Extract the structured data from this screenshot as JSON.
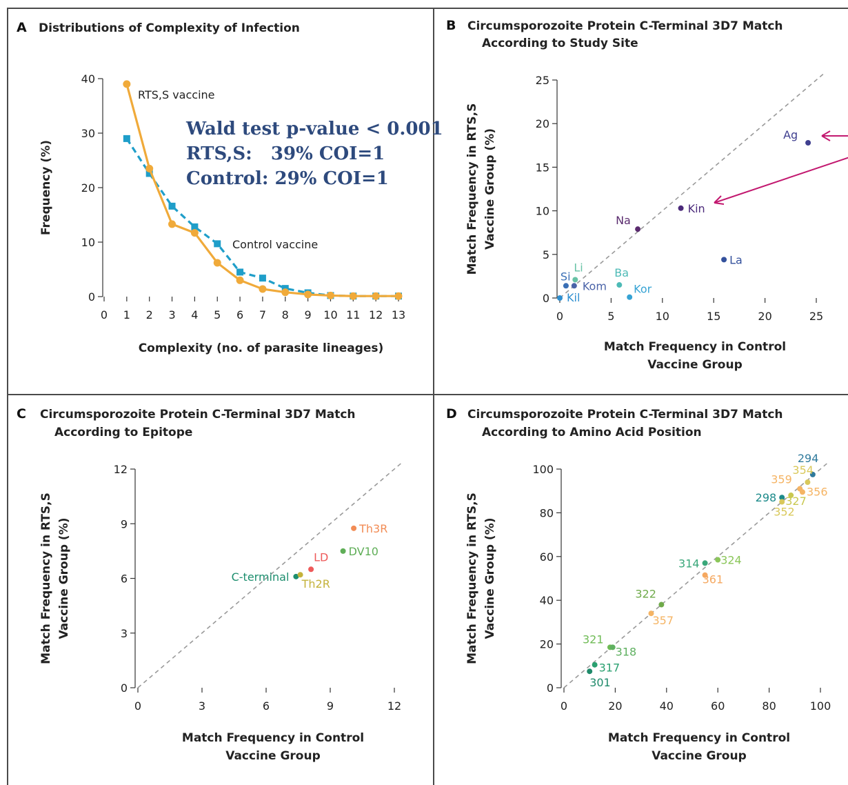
{
  "panels": {
    "a": {
      "letter": "A",
      "title_lines": [
        "Distributions of Complexity of Infection"
      ]
    },
    "b": {
      "letter": "B",
      "title_lines": [
        "Circumsporozoite Protein C-Terminal 3D7 Match",
        "According to Study Site"
      ]
    },
    "c": {
      "letter": "C",
      "title_lines": [
        "Circumsporozoite Protein C-Terminal 3D7 Match",
        "According to Epitope"
      ]
    },
    "d": {
      "letter": "D",
      "title_lines": [
        "Circumsporozoite Protein C-Terminal 3D7 Match",
        "According to Amino Acid Position"
      ]
    }
  },
  "annotation": {
    "lines": [
      "Wald test p-value < 0.001",
      "RTS,S:   39% COI=1",
      "Control: 29% COI=1"
    ],
    "arrow_color": "#c2186f"
  },
  "chart_data": [
    {
      "id": "a",
      "type": "line",
      "xlabel": "Complexity (no. of parasite lineages)",
      "ylabel": "Frequency (%)",
      "xlim": [
        0,
        13
      ],
      "ylim": [
        0,
        40
      ],
      "xticks": [
        0,
        1,
        2,
        3,
        4,
        5,
        6,
        7,
        8,
        9,
        10,
        11,
        12,
        13
      ],
      "yticks": [
        0,
        10,
        20,
        30,
        40
      ],
      "x": [
        1,
        2,
        3,
        4,
        5,
        6,
        7,
        8,
        9,
        10,
        11,
        12,
        13
      ],
      "series": [
        {
          "name": "RTS,S vaccine",
          "color": "#f0aa3a",
          "marker": "circle",
          "dashed": false,
          "values": [
            39,
            23.5,
            13.3,
            11.7,
            6.2,
            3,
            1.4,
            0.8,
            0.4,
            0.2,
            0.1,
            0.1,
            0.1
          ]
        },
        {
          "name": "Control vaccine",
          "color": "#1f9ec9",
          "marker": "square",
          "dashed": true,
          "values": [
            29,
            22.6,
            16.6,
            12.8,
            9.7,
            4.5,
            3.4,
            1.5,
            0.7,
            0.2,
            0.1,
            0.1,
            0.1
          ]
        }
      ]
    },
    {
      "id": "b",
      "type": "scatter",
      "xlabel_lines": [
        "Match Frequency in Control",
        "Vaccine Group"
      ],
      "ylabel_lines": [
        "Match Frequency in RTS,S",
        "Vaccine Group (%)"
      ],
      "xlim": [
        0,
        25
      ],
      "ylim": [
        0,
        25
      ],
      "xticks": [
        0,
        5,
        10,
        15,
        20,
        25
      ],
      "yticks": [
        0,
        5,
        10,
        15,
        20,
        25
      ],
      "points": [
        {
          "label": "Ag",
          "x": 24.2,
          "y": 17.8,
          "color": "#3f3f8f"
        },
        {
          "label": "Kin",
          "x": 11.8,
          "y": 10.3,
          "color": "#4b2a7a"
        },
        {
          "label": "Na",
          "x": 7.6,
          "y": 7.9,
          "color": "#5a2b6e"
        },
        {
          "label": "La",
          "x": 16.0,
          "y": 4.4,
          "color": "#34519c"
        },
        {
          "label": "Li",
          "x": 1.5,
          "y": 2.1,
          "color": "#67c2a5"
        },
        {
          "label": "Ba",
          "x": 5.8,
          "y": 1.5,
          "color": "#4dbab6"
        },
        {
          "label": "Si",
          "x": 0.6,
          "y": 1.4,
          "color": "#3a6fb5"
        },
        {
          "label": "Kom",
          "x": 1.4,
          "y": 1.4,
          "color": "#4a63a8"
        },
        {
          "label": "Kor",
          "x": 6.8,
          "y": 0.1,
          "color": "#36a3d4"
        },
        {
          "label": "Kil",
          "x": 0.0,
          "y": 0.0,
          "color": "#2f8fd0"
        }
      ]
    },
    {
      "id": "c",
      "type": "scatter",
      "xlabel_lines": [
        "Match Frequency in Control",
        "Vaccine Group"
      ],
      "ylabel_lines": [
        "Match Frequency in RTS,S",
        "Vaccine Group (%)"
      ],
      "xlim": [
        0,
        12
      ],
      "ylim": [
        0,
        12
      ],
      "xticks": [
        0,
        3,
        6,
        9,
        12
      ],
      "yticks": [
        0,
        3,
        6,
        9,
        12
      ],
      "points": [
        {
          "label": "Th3R",
          "x": 10.1,
          "y": 8.75,
          "color": "#f28c55"
        },
        {
          "label": "DV10",
          "x": 9.6,
          "y": 7.5,
          "color": "#5fae57"
        },
        {
          "label": "LD",
          "x": 8.1,
          "y": 6.5,
          "color": "#ee5a5a"
        },
        {
          "label": "C-terminal",
          "x": 7.4,
          "y": 6.1,
          "color": "#1d8e6e"
        },
        {
          "label": "Th2R",
          "x": 7.6,
          "y": 6.2,
          "color": "#c4b23a"
        }
      ]
    },
    {
      "id": "d",
      "type": "scatter",
      "xlabel_lines": [
        "Match Frequency in Control",
        "Vaccine Group"
      ],
      "ylabel_lines": [
        "Match Frequency in RTS,S",
        "Vaccine Group (%)"
      ],
      "xlim": [
        0,
        100
      ],
      "ylim": [
        0,
        100
      ],
      "xticks": [
        0,
        20,
        40,
        60,
        80,
        100
      ],
      "yticks": [
        0,
        20,
        40,
        60,
        80,
        100
      ],
      "points": [
        {
          "label": "294",
          "x": 97,
          "y": 97.5,
          "color": "#2f7a9c"
        },
        {
          "label": "354",
          "x": 95,
          "y": 94,
          "color": "#d9c85a"
        },
        {
          "label": "359",
          "x": 92,
          "y": 91,
          "color": "#f5b464"
        },
        {
          "label": "356",
          "x": 93,
          "y": 89.5,
          "color": "#f5b464"
        },
        {
          "label": "298",
          "x": 85,
          "y": 87,
          "color": "#1c8a8a"
        },
        {
          "label": "327",
          "x": 88.5,
          "y": 88,
          "color": "#c9c850"
        },
        {
          "label": "352",
          "x": 85,
          "y": 85,
          "color": "#d9c85a"
        },
        {
          "label": "314",
          "x": 55,
          "y": 57,
          "color": "#3aa77a"
        },
        {
          "label": "324",
          "x": 60,
          "y": 58.5,
          "color": "#8bc65a"
        },
        {
          "label": "361",
          "x": 55,
          "y": 51.5,
          "color": "#f5a860"
        },
        {
          "label": "322",
          "x": 38,
          "y": 38,
          "color": "#6faa4a"
        },
        {
          "label": "357",
          "x": 34,
          "y": 34,
          "color": "#f5b464"
        },
        {
          "label": "321",
          "x": 18,
          "y": 18.5,
          "color": "#6fbb55"
        },
        {
          "label": "318",
          "x": 19,
          "y": 18.5,
          "color": "#5fb060"
        },
        {
          "label": "317",
          "x": 12,
          "y": 10.5,
          "color": "#2aa070"
        },
        {
          "label": "301",
          "x": 10,
          "y": 7.5,
          "color": "#1f8a6a"
        }
      ]
    }
  ]
}
